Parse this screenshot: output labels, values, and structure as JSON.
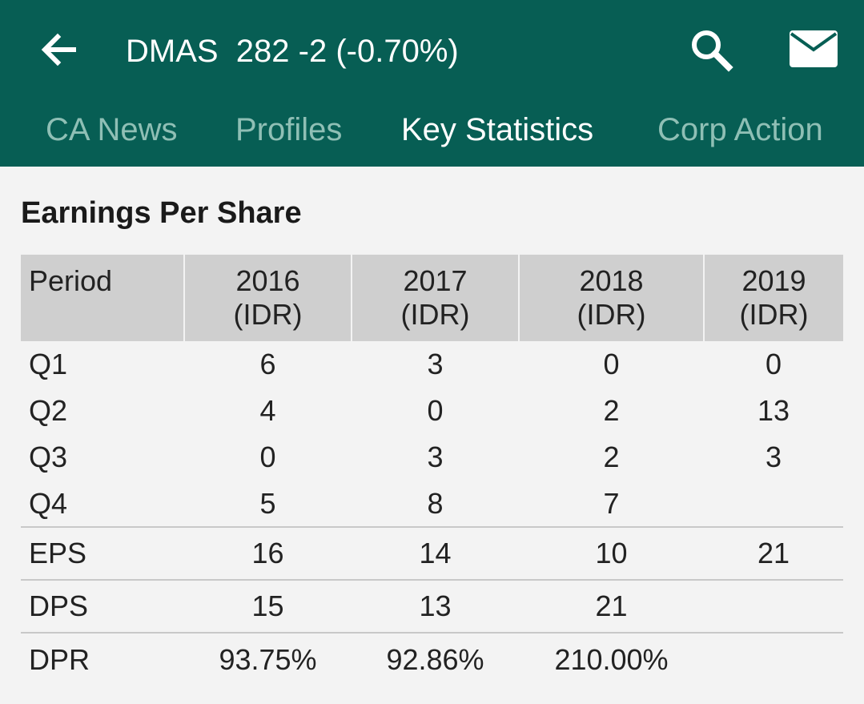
{
  "header": {
    "title": "DMAS  282 -2 (-0.70%)",
    "accent_color": "#075e54"
  },
  "icons": {
    "back": "arrow-left-icon",
    "search": "search-icon",
    "mail": "mail-icon"
  },
  "tabs": [
    {
      "label": "CA News",
      "active": false
    },
    {
      "label": "Profiles",
      "active": false
    },
    {
      "label": "Key Statistics",
      "active": true
    },
    {
      "label": "Corp Action",
      "active": false
    }
  ],
  "section": {
    "title": "Earnings Per Share"
  },
  "table": {
    "headers": [
      {
        "line1": "Period",
        "line2": ""
      },
      {
        "line1": "2016",
        "line2": "(IDR)"
      },
      {
        "line1": "2017",
        "line2": "(IDR)"
      },
      {
        "line1": "2018",
        "line2": "(IDR)"
      },
      {
        "line1": "2019",
        "line2": "(IDR)"
      }
    ],
    "rows": [
      [
        "Q1",
        "6",
        "3",
        "0",
        "0"
      ],
      [
        "Q2",
        "4",
        "0",
        "2",
        "13"
      ],
      [
        "Q3",
        "0",
        "3",
        "2",
        "3"
      ],
      [
        "Q4",
        "5",
        "8",
        "7",
        ""
      ]
    ],
    "summary_rows": [
      [
        "EPS",
        "16",
        "14",
        "10",
        "21"
      ],
      [
        "DPS",
        "15",
        "13",
        "21",
        ""
      ],
      [
        "DPR",
        "93.75%",
        "92.86%",
        "210.00%",
        ""
      ]
    ]
  }
}
